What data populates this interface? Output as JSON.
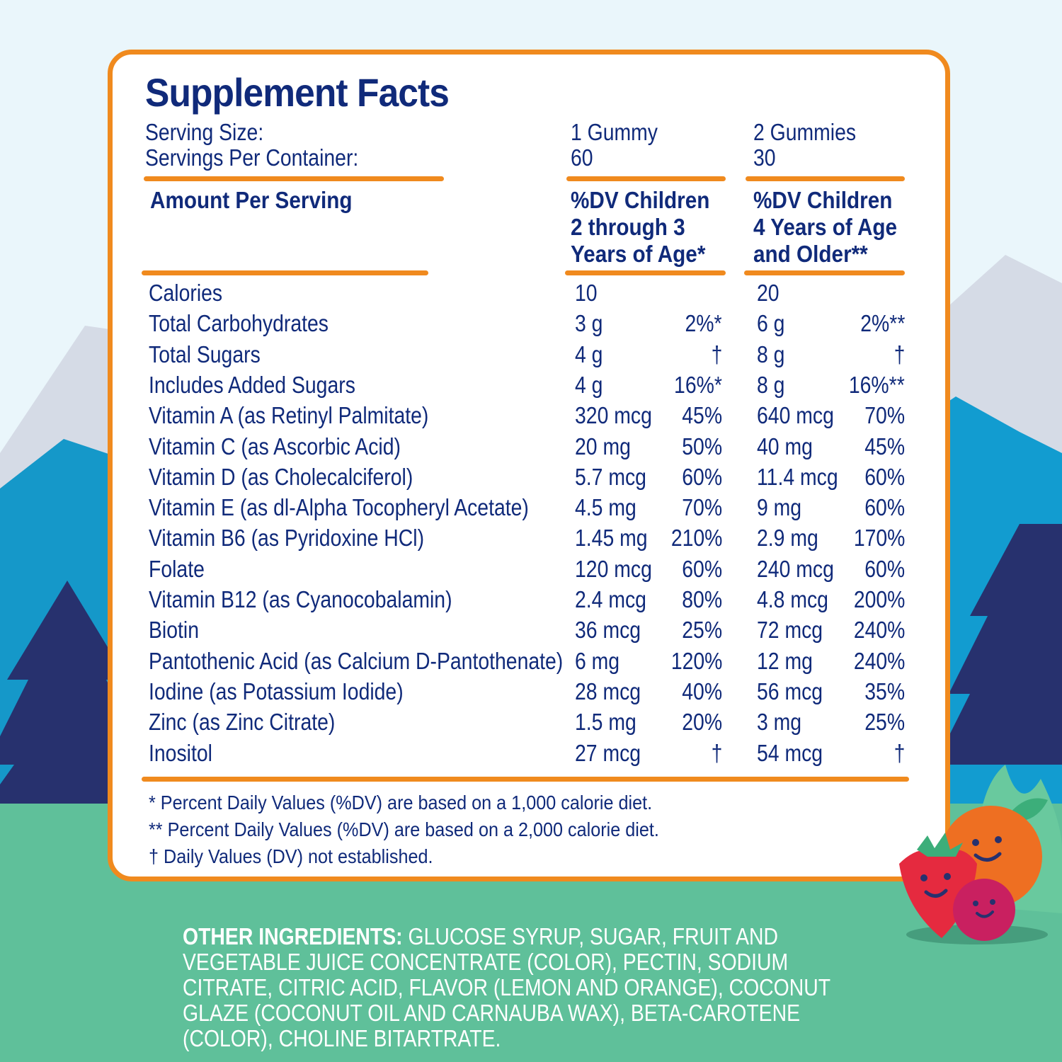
{
  "title": "Supplement Facts",
  "serving": {
    "size_label": "Serving Size:",
    "per_container_label": "Servings Per Container:",
    "col1_size": "1 Gummy",
    "col1_servings": "60",
    "col2_size": "2 Gummies",
    "col2_servings": "30"
  },
  "headers": {
    "amount": "Amount Per Serving",
    "col1": [
      "%DV Children",
      "2 through 3",
      "Years of Age*"
    ],
    "col2": [
      "%DV Children",
      "4 Years of Age",
      "and Older**"
    ]
  },
  "rows": [
    {
      "name": "Calories",
      "a1": "10",
      "d1": "",
      "a2": "20",
      "d2": ""
    },
    {
      "name": "Total Carbohydrates",
      "a1": "3 g",
      "d1": "2%*",
      "a2": "6 g",
      "d2": "2%**"
    },
    {
      "name": "Total Sugars",
      "a1": "4 g",
      "d1": "†",
      "a2": "8 g",
      "d2": "†"
    },
    {
      "name": "Includes Added Sugars",
      "a1": "4 g",
      "d1": "16%*",
      "a2": "8 g",
      "d2": "16%**"
    },
    {
      "name": "Vitamin A (as Retinyl Palmitate)",
      "a1": "320 mcg",
      "d1": "45%",
      "a2": "640 mcg",
      "d2": "70%"
    },
    {
      "name": "Vitamin C (as Ascorbic Acid)",
      "a1": "20 mg",
      "d1": "50%",
      "a2": "40 mg",
      "d2": "45%"
    },
    {
      "name": "Vitamin D (as Cholecalciferol)",
      "a1": "5.7 mcg",
      "d1": "60%",
      "a2": "11.4 mcg",
      "d2": "60%"
    },
    {
      "name": "Vitamin E (as dl-Alpha Tocopheryl Acetate)",
      "a1": "4.5 mg",
      "d1": "70%",
      "a2": "9 mg",
      "d2": "60%"
    },
    {
      "name": "Vitamin B6 (as Pyridoxine HCl)",
      "a1": "1.45 mg",
      "d1": "210%",
      "a2": "2.9 mg",
      "d2": "170%"
    },
    {
      "name": "Folate",
      "a1": "120 mcg",
      "d1": "60%",
      "a2": "240 mcg",
      "d2": "60%"
    },
    {
      "name": "Vitamin B12 (as Cyanocobalamin)",
      "a1": "2.4 mcg",
      "d1": "80%",
      "a2": "4.8 mcg",
      "d2": "200%"
    },
    {
      "name": "Biotin",
      "a1": "36 mcg",
      "d1": "25%",
      "a2": "72 mcg",
      "d2": "240%"
    },
    {
      "name": "Pantothenic Acid (as Calcium D-Pantothenate)",
      "a1": "6 mg",
      "d1": "120%",
      "a2": "12 mg",
      "d2": "240%"
    },
    {
      "name": "Iodine (as Potassium Iodide)",
      "a1": "28 mcg",
      "d1": "40%",
      "a2": "56 mcg",
      "d2": "35%"
    },
    {
      "name": "Zinc (as Zinc Citrate)",
      "a1": "1.5 mg",
      "d1": "20%",
      "a2": "3 mg",
      "d2": "25%"
    },
    {
      "name": "Inositol",
      "a1": "27 mcg",
      "d1": "†",
      "a2": "54 mcg",
      "d2": "†"
    }
  ],
  "footnotes": [
    "* Percent Daily Values (%DV) are based on a 1,000 calorie diet.",
    "** Percent Daily Values (%DV) are based on a 2,000 calorie diet.",
    "† Daily Values (DV) not established."
  ],
  "ingredients": {
    "label": "OTHER INGREDIENTS:",
    "text": " GLUCOSE SYRUP, SUGAR, FRUIT AND VEGETABLE JUICE CONCENTRATE (COLOR), PECTIN, SODIUM CITRATE, CITRIC ACID, FLAVOR (LEMON AND ORANGE), COCONUT GLAZE (COCONUT OIL AND CARNAUBA WAX), BETA-CAROTENE (COLOR), CHOLINE BITARTRATE."
  },
  "colors": {
    "accent": "#f08a1e",
    "text": "#102a7a",
    "grass": "#5fc09a",
    "mountain_snow": "#d8dee8",
    "mountain_blue": "#1aa0cf",
    "tree_navy": "#27316e"
  }
}
